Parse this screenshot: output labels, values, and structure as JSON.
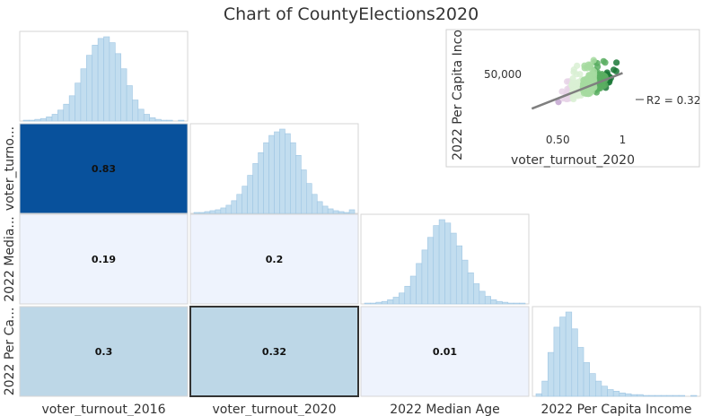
{
  "title": "Chart of CountyElections2020",
  "colors": {
    "hist_fill": "#c2ddef",
    "hist_stroke": "#9fc6e3",
    "cell_border": "#d6d6d6",
    "selected_border": "#333333",
    "corr_scale": [
      "#eef3fd",
      "#bdd7e7",
      "#08519c"
    ],
    "trend_line": "#7f7f7f"
  },
  "chart_data": {
    "type": "scatter-matrix",
    "variables": [
      "voter_turnout_2016",
      "voter_turnout_2020",
      "2022 Median Age",
      "2022 Per Capita Income"
    ],
    "row_labels": [
      "voter_turno...",
      "2022 Media...",
      "2022 Per Ca..."
    ],
    "correlations": [
      {
        "row": 1,
        "col": 0,
        "value": 0.83,
        "label": "0.83"
      },
      {
        "row": 2,
        "col": 0,
        "value": 0.19,
        "label": "0.19"
      },
      {
        "row": 2,
        "col": 1,
        "value": 0.2,
        "label": "0.2"
      },
      {
        "row": 3,
        "col": 0,
        "value": 0.3,
        "label": "0.3"
      },
      {
        "row": 3,
        "col": 1,
        "value": 0.32,
        "label": "0.32"
      },
      {
        "row": 3,
        "col": 2,
        "value": 0.01,
        "label": "0.01"
      }
    ],
    "selected_cell": {
      "row": 3,
      "col": 1
    },
    "histograms": [
      {
        "variable": "voter_turnout_2016",
        "counts": [
          1,
          1,
          2,
          3,
          5,
          8,
          13,
          20,
          30,
          45,
          62,
          78,
          90,
          98,
          100,
          93,
          80,
          62,
          42,
          25,
          14,
          8,
          4,
          2,
          1,
          1,
          0,
          1
        ]
      },
      {
        "variable": "voter_turnout_2020",
        "counts": [
          1,
          1,
          2,
          3,
          4,
          6,
          9,
          14,
          21,
          30,
          42,
          55,
          67,
          78,
          86,
          90,
          93,
          88,
          78,
          64,
          48,
          33,
          21,
          13,
          8,
          5,
          3,
          2,
          1,
          4
        ]
      },
      {
        "variable": "2022 Median Age",
        "counts": [
          1,
          1,
          2,
          3,
          5,
          8,
          13,
          21,
          33,
          48,
          64,
          79,
          93,
          100,
          96,
          84,
          69,
          52,
          37,
          24,
          15,
          9,
          5,
          3,
          2,
          1,
          1,
          1
        ]
      },
      {
        "variable": "2022 Per Capita Income",
        "counts": [
          3,
          18,
          52,
          82,
          94,
          100,
          80,
          58,
          40,
          27,
          18,
          12,
          8,
          6,
          4,
          3,
          2,
          2,
          1,
          1,
          1,
          1,
          1,
          1,
          1,
          0,
          1
        ]
      }
    ],
    "preview": {
      "type": "scatter",
      "xlabel": "voter_turnout_2020",
      "ylabel": "2022 Per Capita Inco",
      "x_ticks": [
        {
          "value": 0.5,
          "label": "0.50"
        },
        {
          "value": 1,
          "label": "1"
        }
      ],
      "y_ticks": [
        {
          "value": 50000,
          "label": "50,000"
        }
      ],
      "xlim": [
        0.18,
        1.08
      ],
      "ylim": [
        20000,
        75000
      ],
      "trend": {
        "x": [
          0.3,
          1.0
        ],
        "y": [
          28000,
          51000
        ]
      },
      "r2_label": "R2 = 0.32",
      "color_scale": [
        "#40004b",
        "#9970ab",
        "#c2a5cf",
        "#e7d4e8",
        "#d9f0d3",
        "#a6dba0",
        "#5aae61",
        "#1b7837",
        "#00441b"
      ]
    }
  }
}
